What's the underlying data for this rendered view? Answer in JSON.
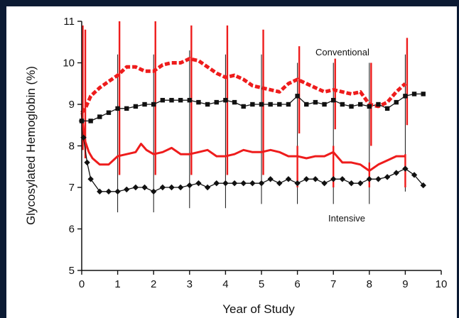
{
  "chart_data": {
    "type": "line",
    "xlabel": "Year of Study",
    "ylabel": "Glycosylated Hemoglobin (%)",
    "xlim": [
      0,
      10
    ],
    "ylim": [
      5,
      11
    ],
    "x_ticks": [
      0,
      1,
      2,
      3,
      4,
      5,
      6,
      7,
      8,
      9,
      10
    ],
    "y_ticks": [
      5,
      6,
      7,
      8,
      9,
      10,
      11
    ],
    "grid": false,
    "annotations": [
      "Conventional",
      "Intensive"
    ],
    "series": [
      {
        "group": "Conventional",
        "stat": "median",
        "marker": "square",
        "color": "#111111",
        "x": [
          0,
          0.25,
          0.5,
          0.75,
          1,
          1.25,
          1.5,
          1.75,
          2,
          2.25,
          2.5,
          2.75,
          3,
          3.25,
          3.5,
          3.75,
          4,
          4.25,
          4.5,
          4.75,
          5,
          5.25,
          5.5,
          5.75,
          6,
          6.25,
          6.5,
          6.75,
          7,
          7.25,
          7.5,
          7.75,
          8,
          8.25,
          8.5,
          8.75,
          9,
          9.25,
          9.5
        ],
        "y": [
          8.6,
          8.6,
          8.7,
          8.8,
          8.9,
          8.9,
          8.95,
          9.0,
          9.0,
          9.1,
          9.1,
          9.1,
          9.1,
          9.05,
          9.0,
          9.05,
          9.1,
          9.05,
          8.95,
          9.0,
          9.0,
          9.0,
          9.0,
          9.0,
          9.2,
          9.0,
          9.05,
          9.0,
          9.1,
          9.0,
          8.95,
          9.0,
          8.95,
          9.0,
          8.9,
          9.05,
          9.2,
          9.25,
          9.25
        ]
      },
      {
        "group": "Conventional",
        "stat": "mean",
        "color": "#ee1c1c",
        "x": [
          0,
          0.1,
          0.25,
          0.5,
          0.75,
          1,
          1.25,
          1.5,
          1.75,
          2,
          2.25,
          2.5,
          2.75,
          3,
          3.25,
          3.5,
          3.75,
          4,
          4.25,
          4.5,
          4.75,
          5,
          5.25,
          5.5,
          5.75,
          6,
          6.25,
          6.5,
          6.75,
          7,
          7.25,
          7.5,
          7.75,
          8,
          8.25,
          8.5,
          8.75,
          9
        ],
        "y": [
          8.8,
          8.9,
          9.2,
          9.4,
          9.55,
          9.7,
          9.9,
          9.9,
          9.8,
          9.8,
          9.95,
          10.0,
          10.0,
          10.1,
          10.05,
          9.9,
          9.75,
          9.65,
          9.7,
          9.6,
          9.45,
          9.4,
          9.35,
          9.3,
          9.5,
          9.6,
          9.5,
          9.4,
          9.3,
          9.35,
          9.3,
          9.25,
          9.3,
          9.0,
          8.95,
          9.05,
          9.3,
          9.5
        ]
      },
      {
        "group": "Intensive",
        "stat": "median",
        "marker": "diamond",
        "color": "#111111",
        "x": [
          0,
          0.05,
          0.15,
          0.25,
          0.5,
          0.75,
          1,
          1.25,
          1.5,
          1.75,
          2,
          2.25,
          2.5,
          2.75,
          3,
          3.25,
          3.5,
          3.75,
          4,
          4.25,
          4.5,
          4.75,
          5,
          5.25,
          5.5,
          5.75,
          6,
          6.25,
          6.5,
          6.75,
          7,
          7.25,
          7.5,
          7.75,
          8,
          8.25,
          8.5,
          8.75,
          9,
          9.25,
          9.5
        ],
        "y": [
          8.6,
          8.2,
          7.6,
          7.2,
          6.9,
          6.9,
          6.9,
          6.95,
          7.0,
          7.0,
          6.9,
          7.0,
          7.0,
          7.0,
          7.05,
          7.1,
          7.0,
          7.1,
          7.1,
          7.1,
          7.1,
          7.1,
          7.1,
          7.2,
          7.1,
          7.2,
          7.1,
          7.2,
          7.2,
          7.1,
          7.2,
          7.2,
          7.1,
          7.1,
          7.2,
          7.2,
          7.25,
          7.35,
          7.45,
          7.3,
          7.05
        ]
      },
      {
        "group": "Intensive",
        "stat": "mean",
        "color": "#ee1c1c",
        "x": [
          0,
          0.05,
          0.1,
          0.2,
          0.3,
          0.5,
          0.75,
          1,
          1.25,
          1.5,
          1.65,
          1.8,
          2,
          2.25,
          2.5,
          2.75,
          3,
          3.25,
          3.5,
          3.75,
          4,
          4.25,
          4.5,
          4.75,
          5,
          5.25,
          5.5,
          5.75,
          6,
          6.25,
          6.5,
          6.75,
          7,
          7.25,
          7.5,
          7.75,
          8,
          8.25,
          8.5,
          8.75,
          9
        ],
        "y": [
          8.8,
          8.4,
          8.1,
          7.85,
          7.7,
          7.55,
          7.55,
          7.75,
          7.8,
          7.85,
          8.05,
          7.9,
          7.8,
          7.85,
          7.95,
          7.8,
          7.8,
          7.85,
          7.9,
          7.75,
          7.75,
          7.8,
          7.9,
          7.85,
          7.85,
          7.9,
          7.85,
          7.75,
          7.75,
          7.7,
          7.75,
          7.75,
          7.85,
          7.6,
          7.6,
          7.55,
          7.4,
          7.55,
          7.65,
          7.75,
          7.75
        ]
      }
    ],
    "vertical_ranges": [
      {
        "x": 0,
        "low": 6.3,
        "high": 10.8,
        "color": "#111111"
      },
      {
        "x": 1,
        "low": 6.4,
        "high": 10.2,
        "color": "#111111"
      },
      {
        "x": 2,
        "low": 6.4,
        "high": 10.2,
        "color": "#111111"
      },
      {
        "x": 3,
        "low": 6.5,
        "high": 10.3,
        "color": "#111111"
      },
      {
        "x": 4,
        "low": 6.5,
        "high": 10.2,
        "color": "#111111"
      },
      {
        "x": 5,
        "low": 6.6,
        "high": 10.2,
        "color": "#111111"
      },
      {
        "x": 6,
        "low": 6.6,
        "high": 10.0,
        "color": "#111111"
      },
      {
        "x": 7,
        "low": 6.6,
        "high": 10.0,
        "color": "#111111"
      },
      {
        "x": 8,
        "low": 6.6,
        "high": 10.0,
        "color": "#111111"
      },
      {
        "x": 9,
        "low": 6.9,
        "high": 10.2,
        "color": "#111111"
      },
      {
        "x": 0.03,
        "low": 7.9,
        "high": 10.9,
        "color": "#ee1c1c"
      },
      {
        "x": 0.1,
        "low": 7.7,
        "high": 10.8,
        "color": "#ee1c1c"
      },
      {
        "x": 1.05,
        "low": 7.3,
        "high": 11.0,
        "color": "#ee1c1c"
      },
      {
        "x": 2.05,
        "low": 7.3,
        "high": 11.0,
        "color": "#ee1c1c"
      },
      {
        "x": 3.05,
        "low": 7.3,
        "high": 10.9,
        "color": "#ee1c1c"
      },
      {
        "x": 4.05,
        "low": 7.3,
        "high": 10.9,
        "color": "#ee1c1c"
      },
      {
        "x": 5.05,
        "low": 7.3,
        "high": 10.8,
        "color": "#ee1c1c"
      },
      {
        "x": 6.05,
        "low": 8.3,
        "high": 10.4,
        "color": "#ee1c1c"
      },
      {
        "x": 7.05,
        "low": 8.4,
        "high": 10.1,
        "color": "#ee1c1c"
      },
      {
        "x": 8.05,
        "low": 8.0,
        "high": 10.0,
        "color": "#ee1c1c"
      },
      {
        "x": 9.05,
        "low": 8.5,
        "high": 10.6,
        "color": "#ee1c1c"
      },
      {
        "x": 6.0,
        "low": 7.0,
        "high": 8.0,
        "color": "#ee1c1c"
      },
      {
        "x": 7.0,
        "low": 7.0,
        "high": 8.0,
        "color": "#ee1c1c"
      },
      {
        "x": 8.0,
        "low": 7.0,
        "high": 7.6,
        "color": "#ee1c1c"
      },
      {
        "x": 9.0,
        "low": 7.0,
        "high": 7.8,
        "color": "#ee1c1c"
      }
    ]
  }
}
